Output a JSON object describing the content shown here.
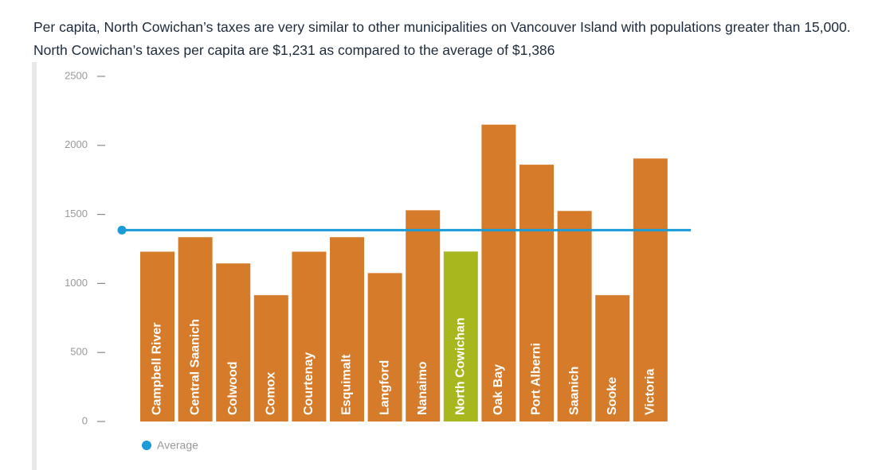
{
  "chart_data": {
    "type": "bar",
    "title": "Per capita, North Cowichan’s taxes are very similar to other municipalities on Vancouver Island with populations greater than 15,000. North Cowichan’s taxes per capita are $1,231 as compared to the average of $1,386",
    "categories": [
      "Campbell River",
      "Central Saanich",
      "Colwood",
      "Comox",
      "Courtenay",
      "Esquimalt",
      "Langford",
      "Nanaimo",
      "North Cowichan",
      "Oak Bay",
      "Port Alberni",
      "Saanich",
      "Sooke",
      "Victoria"
    ],
    "values": [
      1230,
      1335,
      1145,
      915,
      1230,
      1335,
      1075,
      1530,
      1231,
      2150,
      1860,
      1525,
      915,
      1905
    ],
    "colors": [
      "#d67b29",
      "#d67b29",
      "#d67b29",
      "#d67b29",
      "#d67b29",
      "#d67b29",
      "#d67b29",
      "#d67b29",
      "#a9b71f",
      "#d67b29",
      "#d67b29",
      "#d67b29",
      "#d67b29",
      "#d67b29"
    ],
    "average": {
      "name": "Average",
      "value": 1386,
      "color": "#1b9bd7"
    },
    "ylim": [
      0,
      2500
    ],
    "yticks": [
      0,
      500,
      1000,
      1500,
      2000,
      2500
    ]
  }
}
